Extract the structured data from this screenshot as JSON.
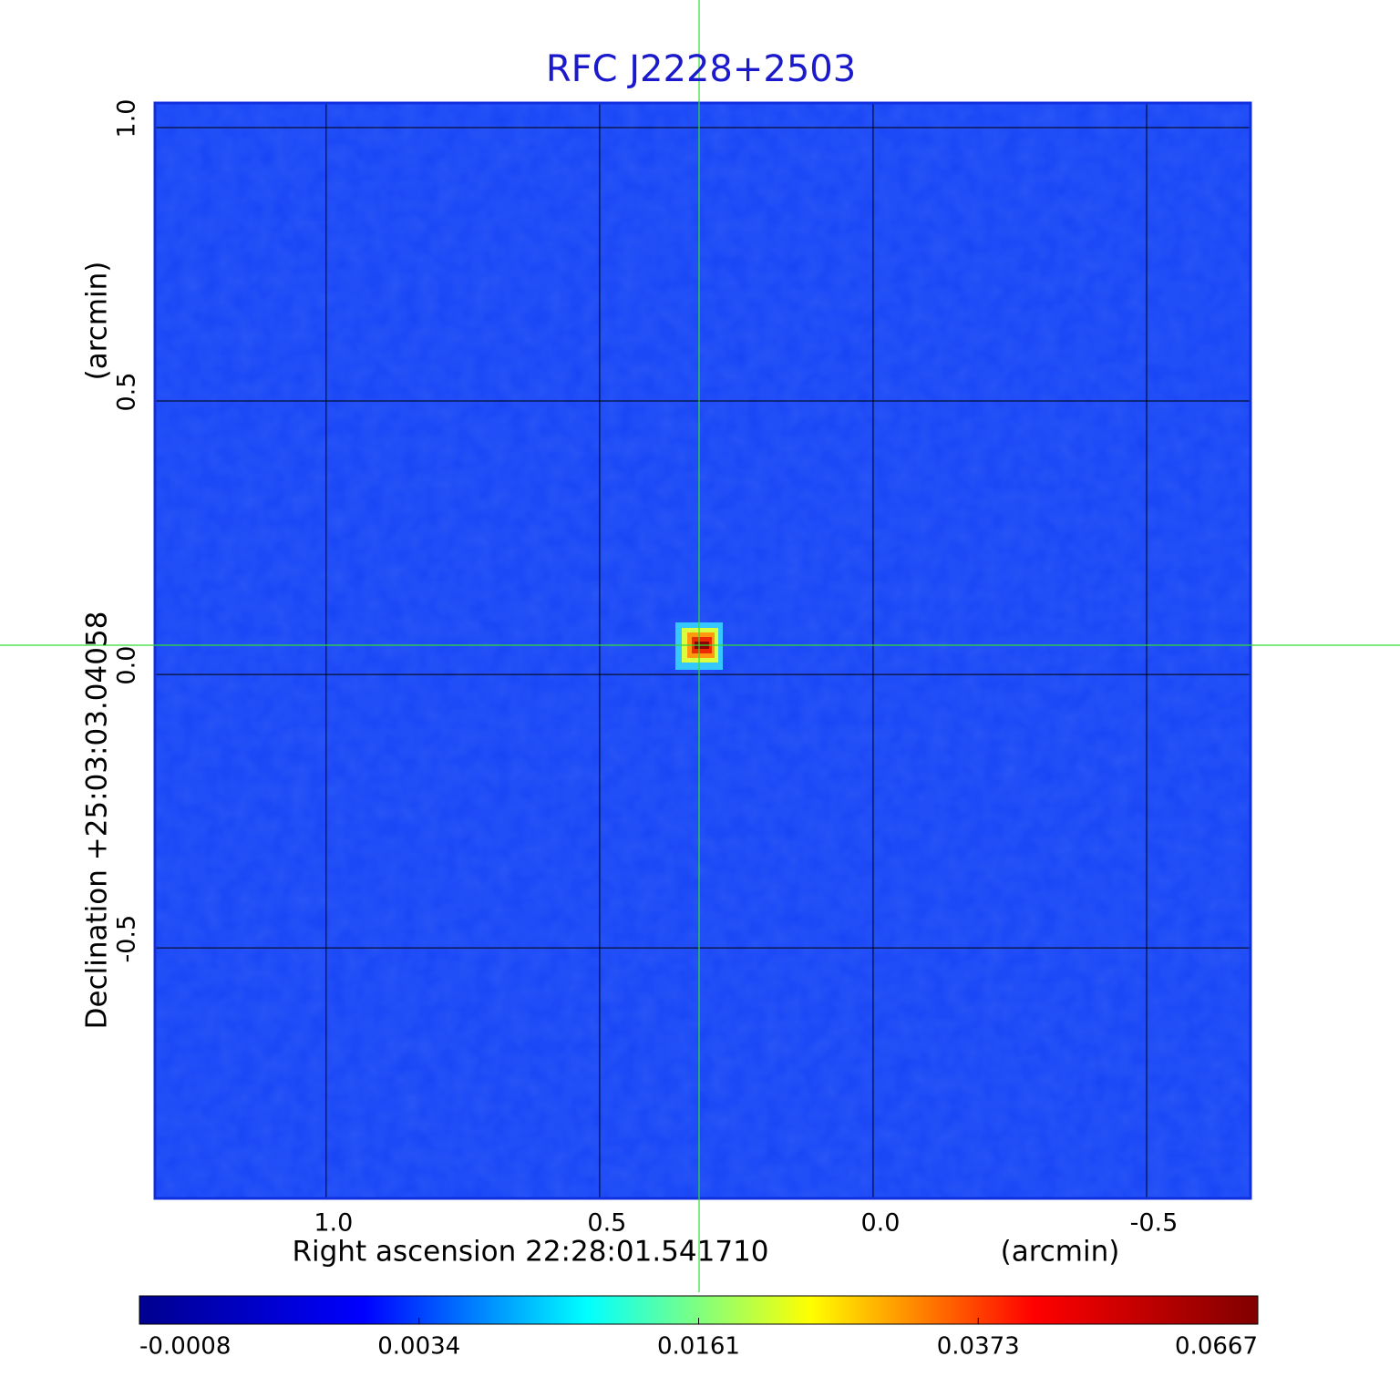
{
  "chart_data": {
    "type": "image",
    "title": "RFC J2228+2503",
    "x_label": "Right ascension  22:28:01.541710",
    "x_unit": "(arcmin)",
    "y_label": "Declination  +25:03:03.04058",
    "y_unit": "(arcmin)",
    "xlim": [
      1.313,
      -0.69
    ],
    "ylim": [
      -0.958,
      1.045
    ],
    "xticks": [
      {
        "value": 1,
        "label": "1.0"
      },
      0.5,
      {
        "value": 0,
        "label": "0.0"
      },
      -0.5
    ],
    "yticks": [
      {
        "value": 1,
        "label": "1.0"
      },
      0.5,
      {
        "value": 0,
        "label": "0.0"
      },
      -0.5
    ],
    "grid": true,
    "colorbar": {
      "ticks": [
        -0.0008,
        0.0034,
        0.0161,
        0.0373,
        0.0667
      ],
      "colors": [
        "#00008f",
        "#0000ff",
        "#00ffff",
        "#ffff00",
        "#ff0000",
        "#800000"
      ]
    }
  }
}
